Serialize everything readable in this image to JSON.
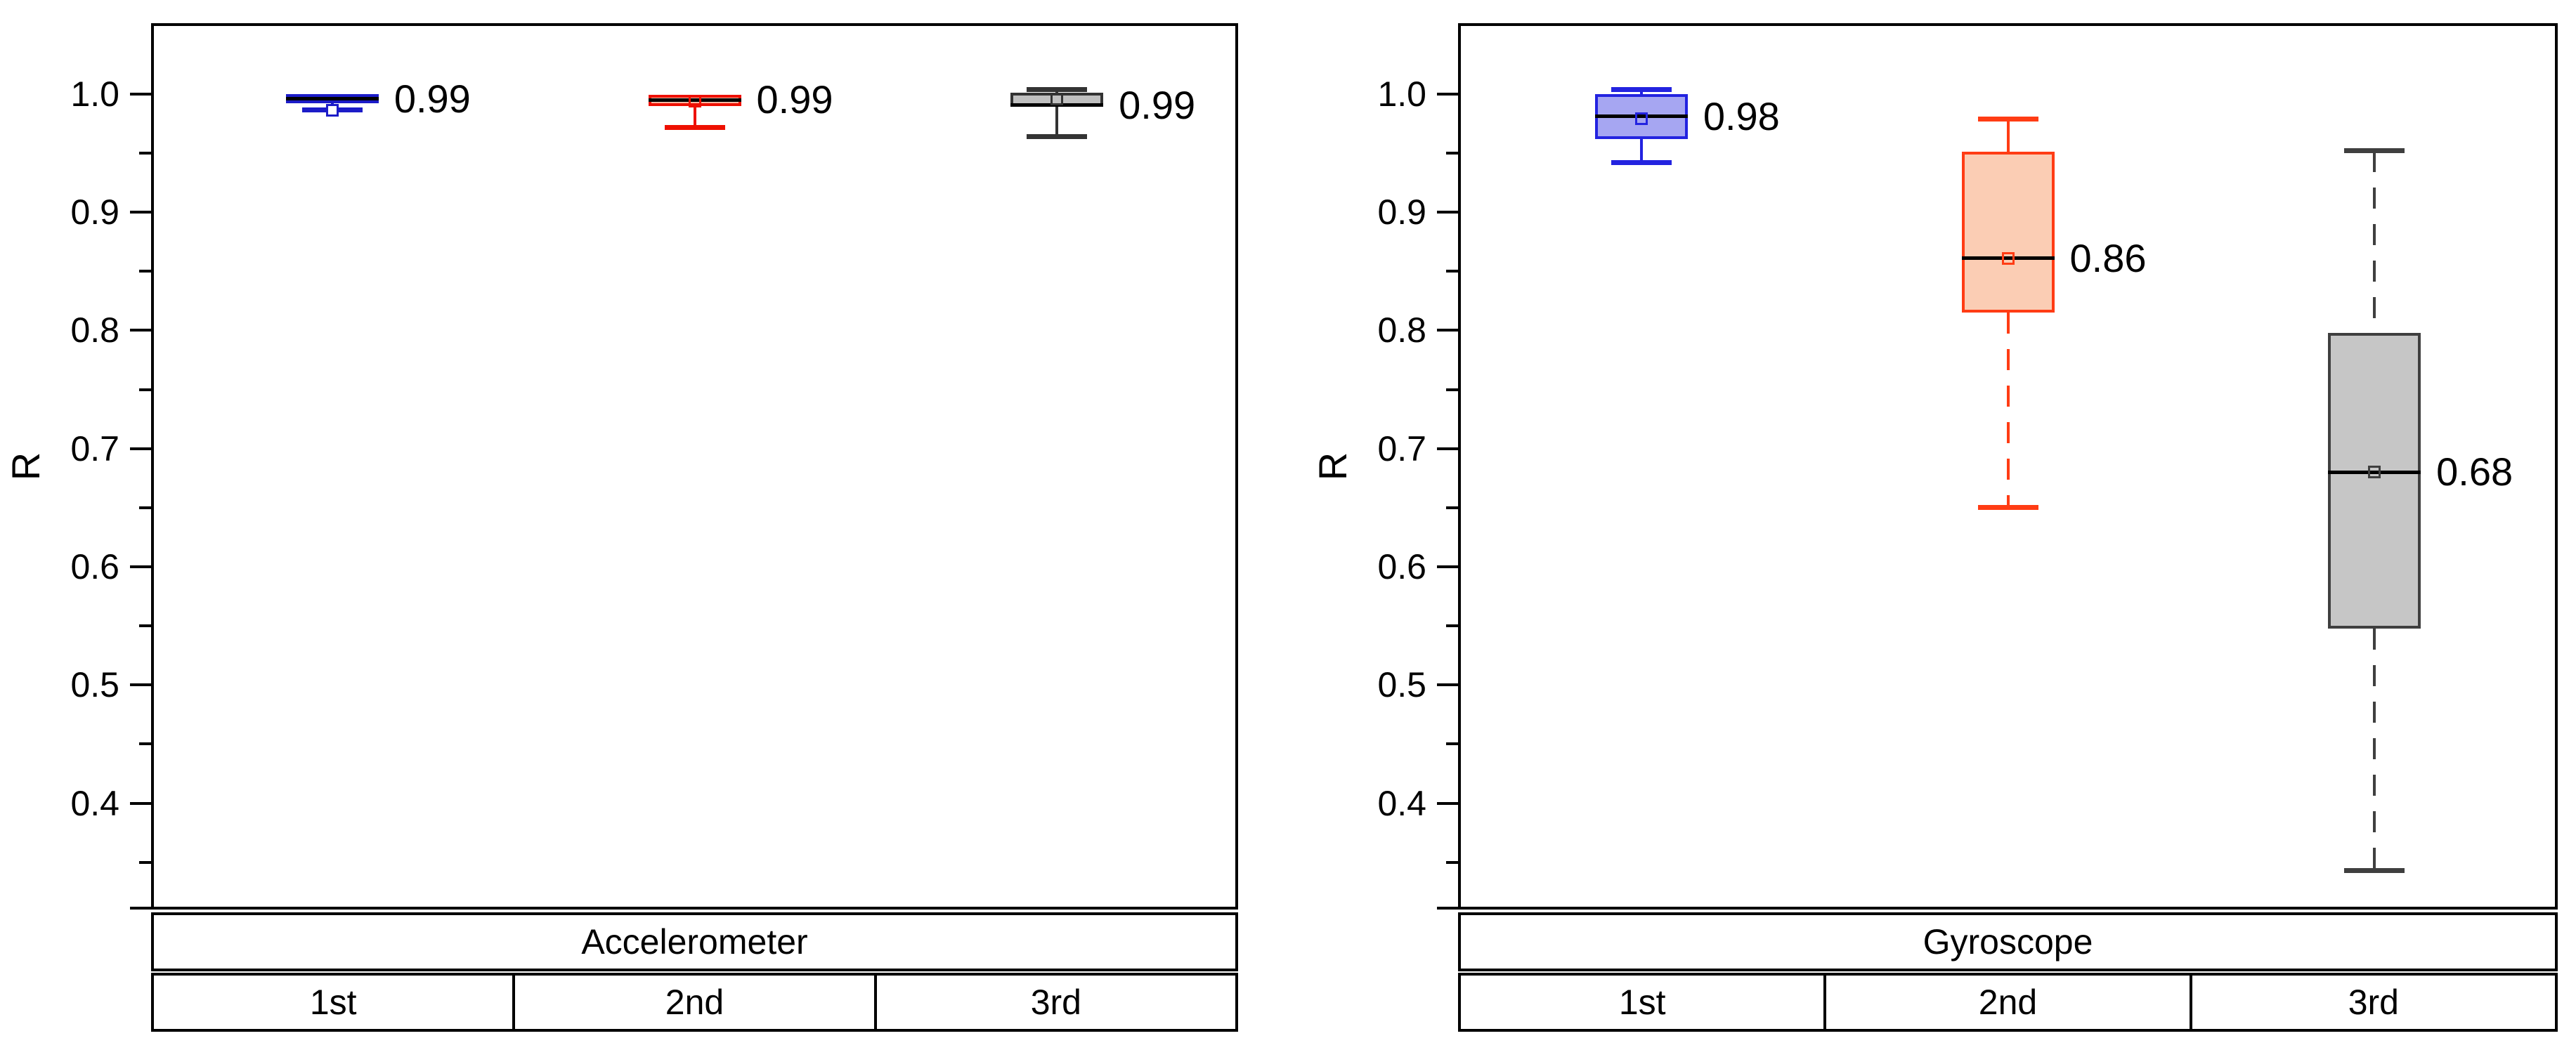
{
  "figure": {
    "background": "#ffffff"
  },
  "axis": {
    "label": "R",
    "tick_labels": [
      "1.0",
      "0.9",
      "0.8",
      "0.7",
      "0.6",
      "0.5",
      "0.4"
    ]
  },
  "chart_data": {
    "type": "box",
    "ylabel": "R",
    "ylim": [
      0.31,
      1.06
    ],
    "yticks": [
      1.0,
      0.9,
      0.8,
      0.7,
      0.6,
      0.5,
      0.4
    ],
    "ytick_labels": [
      "1.0",
      "0.9",
      "0.8",
      "0.7",
      "0.6",
      "0.5",
      "0.4"
    ],
    "minor_yticks": [
      0.95,
      0.85,
      0.75,
      0.65,
      0.55,
      0.45,
      0.35
    ],
    "grid": false,
    "legend": false,
    "panels": [
      {
        "title": "Accelerometer",
        "categories": [
          "1st",
          "2nd",
          "3rd"
        ],
        "boxes": [
          {
            "category": "1st",
            "color": "#1C1CC8",
            "fill": "#8888E8",
            "q1": 0.992,
            "median": 0.996,
            "q3": 1.0,
            "mean": 0.9865,
            "whisker_low": 0.9865,
            "whisker_high": null,
            "whisker_low_style": "solid",
            "whisker_high_style": "solid",
            "label": "0.99"
          },
          {
            "category": "2nd",
            "color": "#EE1000",
            "fill": "#F6B9A4",
            "q1": 0.99,
            "median": 0.995,
            "q3": 0.9995,
            "mean": 0.994,
            "whisker_low": 0.972,
            "whisker_high": null,
            "whisker_low_style": "solid",
            "whisker_high_style": "solid",
            "label": "0.99"
          },
          {
            "category": "3rd",
            "color": "#333333",
            "fill": "#C0C0C0",
            "q1": 0.99,
            "median": 0.9905,
            "q3": 1.001,
            "mean": 0.996,
            "whisker_low": 0.964,
            "whisker_high": 1.004,
            "whisker_low_style": "solid",
            "whisker_high_style": "solid",
            "label": "0.99"
          }
        ]
      },
      {
        "title": "Gyroscope",
        "categories": [
          "1st",
          "2nd",
          "3rd"
        ],
        "boxes": [
          {
            "category": "1st",
            "color": "#2323E0",
            "fill": "#A6A6F2",
            "q1": 0.962,
            "median": 0.981,
            "q3": 1.0,
            "mean": 0.979,
            "whisker_low": 0.942,
            "whisker_high": 1.004,
            "whisker_low_style": "solid",
            "whisker_high_style": "solid",
            "label": "0.98"
          },
          {
            "category": "2nd",
            "color": "#FF3C14",
            "fill": "#FBCDB4",
            "q1": 0.815,
            "median": 0.861,
            "q3": 0.951,
            "mean": 0.861,
            "whisker_low": 0.65,
            "whisker_high": 0.979,
            "whisker_low_style": "dashed",
            "whisker_high_style": "solid",
            "label": "0.86"
          },
          {
            "category": "3rd",
            "color": "#3F3F3F",
            "fill": "#C6C6C6",
            "q1": 0.548,
            "median": 0.68,
            "q3": 0.798,
            "mean": 0.68,
            "whisker_low": 0.343,
            "whisker_high": 0.952,
            "whisker_low_style": "dashed",
            "whisker_high_style": "dashed",
            "label": "0.68"
          }
        ]
      }
    ]
  }
}
